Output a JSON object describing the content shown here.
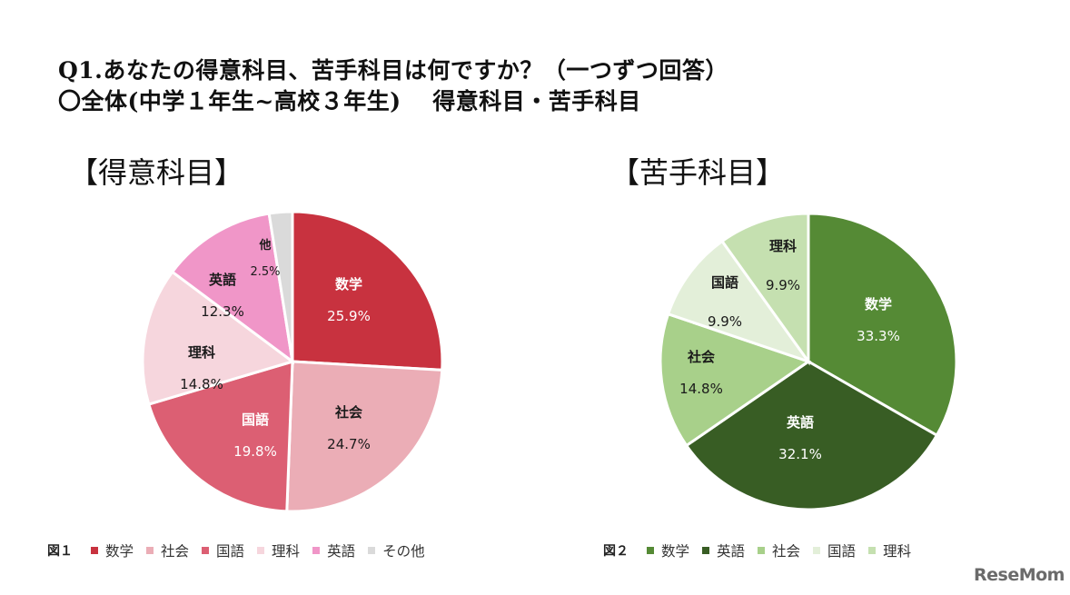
{
  "title": {
    "line1": "Q1.あなたの得意科目、苦手科目は何ですか？（一つずつ回答）",
    "line2": "〇全体(中学１年生~高校３年生)　 得意科目・苦手科目"
  },
  "watermark": "ReseMom",
  "chart_data": [
    {
      "type": "pie",
      "title": "【得意科目】",
      "figure_label": "図１",
      "slices": [
        {
          "label": "数学",
          "value": 25.9,
          "value_text": "25.9%",
          "color": "#c8323f"
        },
        {
          "label": "社会",
          "value": 24.7,
          "value_text": "24.7%",
          "color": "#ebadb6"
        },
        {
          "label": "国語",
          "value": 19.8,
          "value_text": "19.8%",
          "color": "#dc5f73"
        },
        {
          "label": "理科",
          "value": 14.8,
          "value_text": "14.8%",
          "color": "#f6d6dd"
        },
        {
          "label": "英語",
          "value": 12.3,
          "value_text": "12.3%",
          "color": "#f096c8"
        },
        {
          "label": "他",
          "value": 2.5,
          "value_text": "2.5%",
          "color": "#dadada"
        }
      ],
      "legend": [
        "数学",
        "社会",
        "国語",
        "理科",
        "英語",
        "その他"
      ]
    },
    {
      "type": "pie",
      "title": "【苦手科目】",
      "figure_label": "図２",
      "slices": [
        {
          "label": "数学",
          "value": 33.3,
          "value_text": "33.3%",
          "color": "#558a35"
        },
        {
          "label": "英語",
          "value": 32.1,
          "value_text": "32.1%",
          "color": "#385d24"
        },
        {
          "label": "社会",
          "value": 14.8,
          "value_text": "14.8%",
          "color": "#a8d08a"
        },
        {
          "label": "国語",
          "value": 9.9,
          "value_text": "9.9%",
          "color": "#e3efd9"
        },
        {
          "label": "理科",
          "value": 9.9,
          "value_text": "9.9%",
          "color": "#c5e0b0"
        }
      ],
      "legend": [
        "数学",
        "英語",
        "社会",
        "国語",
        "理科"
      ]
    }
  ]
}
